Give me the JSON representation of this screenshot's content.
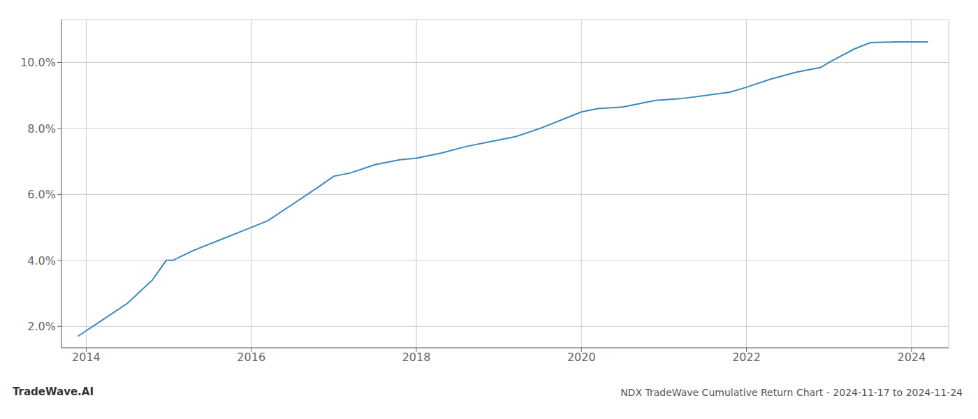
{
  "chart_data": {
    "type": "line",
    "title": "NDX TradeWave Cumulative Return Chart - 2024-11-17 to 2024-11-24",
    "annotations": [
      "TradeWave.AI"
    ],
    "x": [
      2013.9,
      2014.2,
      2014.5,
      2014.8,
      2014.97,
      2015.05,
      2015.3,
      2015.6,
      2015.9,
      2016.2,
      2016.5,
      2016.8,
      2017.0,
      2017.2,
      2017.5,
      2017.8,
      2018.0,
      2018.3,
      2018.6,
      2018.9,
      2019.2,
      2019.5,
      2019.8,
      2020.0,
      2020.2,
      2020.5,
      2020.7,
      2020.9,
      2021.2,
      2021.5,
      2021.8,
      2022.0,
      2022.3,
      2022.6,
      2022.9,
      2023.0,
      2023.3,
      2023.5,
      2023.8,
      2024.0,
      2024.2
    ],
    "values": [
      1.7,
      2.2,
      2.7,
      3.4,
      4.0,
      4.0,
      4.3,
      4.6,
      4.9,
      5.2,
      5.7,
      6.2,
      6.55,
      6.65,
      6.9,
      7.05,
      7.1,
      7.25,
      7.45,
      7.6,
      7.75,
      8.0,
      8.3,
      8.5,
      8.6,
      8.65,
      8.75,
      8.85,
      8.9,
      9.0,
      9.1,
      9.25,
      9.5,
      9.7,
      9.85,
      10.0,
      10.4,
      10.6,
      10.62,
      10.62,
      10.62
    ],
    "color": "#3a8abf",
    "xlim": [
      2013.7,
      2024.45
    ],
    "ylim": [
      1.35,
      11.3
    ],
    "xticks": [
      2014,
      2016,
      2018,
      2020,
      2022,
      2024
    ],
    "yticks": [
      {
        "value": 2.0,
        "label": "2.0%"
      },
      {
        "value": 4.0,
        "label": "4.0%"
      },
      {
        "value": 6.0,
        "label": "6.0%"
      },
      {
        "value": 8.0,
        "label": "8.0%"
      },
      {
        "value": 10.0,
        "label": "10.0%"
      }
    ],
    "grid": true
  }
}
